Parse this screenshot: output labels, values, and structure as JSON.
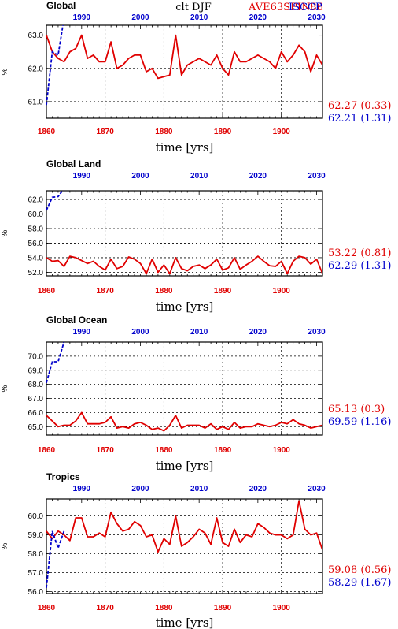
{
  "header": {
    "variable_season": "clt DJF",
    "model_label": "AVE63SPIN86",
    "obs_label": "ISCCP",
    "model_color": "#e00000",
    "obs_color": "#0000cc"
  },
  "xlabel": "time [yrs]",
  "chart_data": [
    {
      "type": "line",
      "title": "Global",
      "ylabel": "%",
      "xlim_bottom": [
        1860,
        1907
      ],
      "xticks_bottom": [
        "1860",
        "1870",
        "1880",
        "1890",
        "1900"
      ],
      "xlim_top": [
        1984,
        2031
      ],
      "xticks_top": [
        "1990",
        "2000",
        "2010",
        "2020",
        "2030"
      ],
      "ylim": [
        60.5,
        63.3
      ],
      "yticks": [
        "61.0",
        "62.0",
        "63.0"
      ],
      "stats": {
        "model": "62.27 (0.33)",
        "obs": "62.21 (1.31)"
      },
      "series": [
        {
          "name": "AVE63SPIN86",
          "axis": "bottom",
          "x": [
            1860,
            1861,
            1862,
            1863,
            1864,
            1865,
            1866,
            1867,
            1868,
            1869,
            1870,
            1871,
            1872,
            1873,
            1874,
            1875,
            1876,
            1877,
            1878,
            1879,
            1880,
            1881,
            1882,
            1883,
            1884,
            1885,
            1886,
            1887,
            1888,
            1889,
            1890,
            1891,
            1892,
            1893,
            1894,
            1895,
            1896,
            1897,
            1898,
            1899,
            1900,
            1901,
            1902,
            1903,
            1904,
            1905,
            1906,
            1907
          ],
          "values": [
            63.0,
            62.5,
            62.3,
            62.2,
            62.5,
            62.6,
            63.0,
            62.3,
            62.4,
            62.2,
            62.2,
            62.8,
            62.0,
            62.1,
            62.3,
            62.4,
            62.4,
            61.9,
            62.0,
            61.7,
            61.75,
            61.8,
            63.0,
            61.8,
            62.1,
            62.2,
            62.3,
            62.2,
            62.1,
            62.4,
            62.0,
            61.8,
            62.5,
            62.2,
            62.2,
            62.3,
            62.4,
            62.3,
            62.2,
            62.0,
            62.5,
            62.2,
            62.4,
            62.7,
            62.5,
            61.9,
            62.4,
            62.1
          ]
        },
        {
          "name": "ISCCP",
          "axis": "top",
          "x": [
            1984,
            1985,
            1986,
            1987
          ],
          "values": [
            60.9,
            62.5,
            62.4,
            63.5
          ]
        }
      ]
    },
    {
      "type": "line",
      "title": "Global Land",
      "ylabel": "%",
      "xlim_bottom": [
        1860,
        1907
      ],
      "xticks_bottom": [
        "1860",
        "1870",
        "1880",
        "1890",
        "1900"
      ],
      "xlim_top": [
        1984,
        2031
      ],
      "xticks_top": [
        "1990",
        "2000",
        "2010",
        "2020",
        "2030"
      ],
      "ylim": [
        51.5,
        63.2
      ],
      "yticks": [
        "52.0",
        "54.0",
        "56.0",
        "58.0",
        "60.0",
        "62.0"
      ],
      "stats": {
        "model": "53.22 (0.81)",
        "obs": "62.29 (1.31)"
      },
      "series": [
        {
          "name": "AVE63SPIN86",
          "axis": "bottom",
          "x": [
            1860,
            1861,
            1862,
            1863,
            1864,
            1865,
            1866,
            1867,
            1868,
            1869,
            1870,
            1871,
            1872,
            1873,
            1874,
            1875,
            1876,
            1877,
            1878,
            1879,
            1880,
            1881,
            1882,
            1883,
            1884,
            1885,
            1886,
            1887,
            1888,
            1889,
            1890,
            1891,
            1892,
            1893,
            1894,
            1895,
            1896,
            1897,
            1898,
            1899,
            1900,
            1901,
            1902,
            1903,
            1904,
            1905,
            1906,
            1907
          ],
          "values": [
            54.0,
            53.5,
            53.6,
            52.8,
            54.2,
            54.0,
            53.6,
            53.2,
            53.5,
            52.8,
            52.3,
            53.8,
            52.5,
            52.8,
            54.1,
            53.8,
            53.2,
            51.8,
            53.8,
            52.0,
            53.0,
            51.8,
            54.0,
            52.5,
            52.2,
            52.8,
            53.0,
            52.5,
            53.0,
            53.8,
            52.3,
            52.6,
            54.0,
            52.4,
            53.0,
            53.5,
            54.2,
            53.5,
            52.9,
            52.8,
            53.5,
            51.8,
            53.5,
            54.2,
            54.0,
            53.1,
            53.8,
            51.8
          ]
        },
        {
          "name": "ISCCP",
          "axis": "top",
          "x": [
            1984,
            1985,
            1986,
            1987
          ],
          "values": [
            60.5,
            62.3,
            62.4,
            63.5
          ]
        }
      ]
    },
    {
      "type": "line",
      "title": "Global Ocean",
      "ylabel": "%",
      "xlim_bottom": [
        1860,
        1907
      ],
      "xticks_bottom": [
        "1860",
        "1870",
        "1880",
        "1890",
        "1900"
      ],
      "xlim_top": [
        1984,
        2031
      ],
      "xticks_top": [
        "1990",
        "2000",
        "2010",
        "2020",
        "2030"
      ],
      "ylim": [
        64.4,
        71.0
      ],
      "yticks": [
        "65.0",
        "66.0",
        "67.0",
        "68.0",
        "69.0",
        "70.0"
      ],
      "stats": {
        "model": "65.13 (0.3)",
        "obs": "69.59 (1.16)"
      },
      "series": [
        {
          "name": "AVE63SPIN86",
          "axis": "bottom",
          "x": [
            1860,
            1861,
            1862,
            1863,
            1864,
            1865,
            1866,
            1867,
            1868,
            1869,
            1870,
            1871,
            1872,
            1873,
            1874,
            1875,
            1876,
            1877,
            1878,
            1879,
            1880,
            1881,
            1882,
            1883,
            1884,
            1885,
            1886,
            1887,
            1888,
            1889,
            1890,
            1891,
            1892,
            1893,
            1894,
            1895,
            1896,
            1897,
            1898,
            1899,
            1900,
            1901,
            1902,
            1903,
            1904,
            1905,
            1906,
            1907
          ],
          "values": [
            65.8,
            65.4,
            65.0,
            65.1,
            65.1,
            65.4,
            66.0,
            65.2,
            65.2,
            65.2,
            65.3,
            65.7,
            64.9,
            65.0,
            64.9,
            65.2,
            65.3,
            65.1,
            64.8,
            64.9,
            64.7,
            65.1,
            65.8,
            64.9,
            65.1,
            65.1,
            65.1,
            64.9,
            65.2,
            64.8,
            65.0,
            64.8,
            65.3,
            64.9,
            65.0,
            65.0,
            65.2,
            65.1,
            65.0,
            65.1,
            65.3,
            65.2,
            65.5,
            65.2,
            65.1,
            64.9,
            65.0,
            65.1
          ]
        },
        {
          "name": "ISCCP",
          "axis": "top",
          "x": [
            1984,
            1985,
            1986,
            1987
          ],
          "values": [
            68.1,
            69.6,
            69.6,
            71.0
          ]
        }
      ]
    },
    {
      "type": "line",
      "title": "Tropics",
      "ylabel": "%",
      "xlim_bottom": [
        1860,
        1907
      ],
      "xticks_bottom": [
        "1860",
        "1870",
        "1880",
        "1890",
        "1900"
      ],
      "xlim_top": [
        1984,
        2031
      ],
      "xticks_top": [
        "1990",
        "2000",
        "2010",
        "2020",
        "2030"
      ],
      "ylim": [
        55.9,
        60.9
      ],
      "yticks": [
        "56.0",
        "57.0",
        "58.0",
        "59.0",
        "60.0"
      ],
      "stats": {
        "model": "59.08 (0.56)",
        "obs": "58.29 (1.67)"
      },
      "series": [
        {
          "name": "AVE63SPIN86",
          "axis": "bottom",
          "x": [
            1860,
            1861,
            1862,
            1863,
            1864,
            1865,
            1866,
            1867,
            1868,
            1869,
            1870,
            1871,
            1872,
            1873,
            1874,
            1875,
            1876,
            1877,
            1878,
            1879,
            1880,
            1881,
            1882,
            1883,
            1884,
            1885,
            1886,
            1887,
            1888,
            1889,
            1890,
            1891,
            1892,
            1893,
            1894,
            1895,
            1896,
            1897,
            1898,
            1899,
            1900,
            1901,
            1902,
            1903,
            1904,
            1905,
            1906,
            1907
          ],
          "values": [
            59.2,
            58.8,
            59.2,
            59.0,
            58.7,
            59.9,
            59.9,
            58.9,
            58.9,
            59.1,
            58.9,
            60.2,
            59.6,
            59.2,
            59.3,
            59.7,
            59.5,
            58.9,
            59.0,
            58.1,
            58.8,
            58.5,
            60.0,
            58.4,
            58.6,
            58.9,
            59.3,
            59.1,
            58.5,
            59.9,
            58.6,
            58.4,
            59.3,
            58.6,
            59.0,
            58.9,
            59.6,
            59.4,
            59.1,
            59.0,
            59.0,
            58.8,
            59.0,
            60.8,
            59.3,
            59.0,
            59.1,
            58.2
          ]
        },
        {
          "name": "ISCCP",
          "axis": "top",
          "x": [
            1984,
            1985,
            1986,
            1987
          ],
          "values": [
            56.2,
            59.2,
            58.3,
            59.2
          ]
        }
      ]
    }
  ]
}
